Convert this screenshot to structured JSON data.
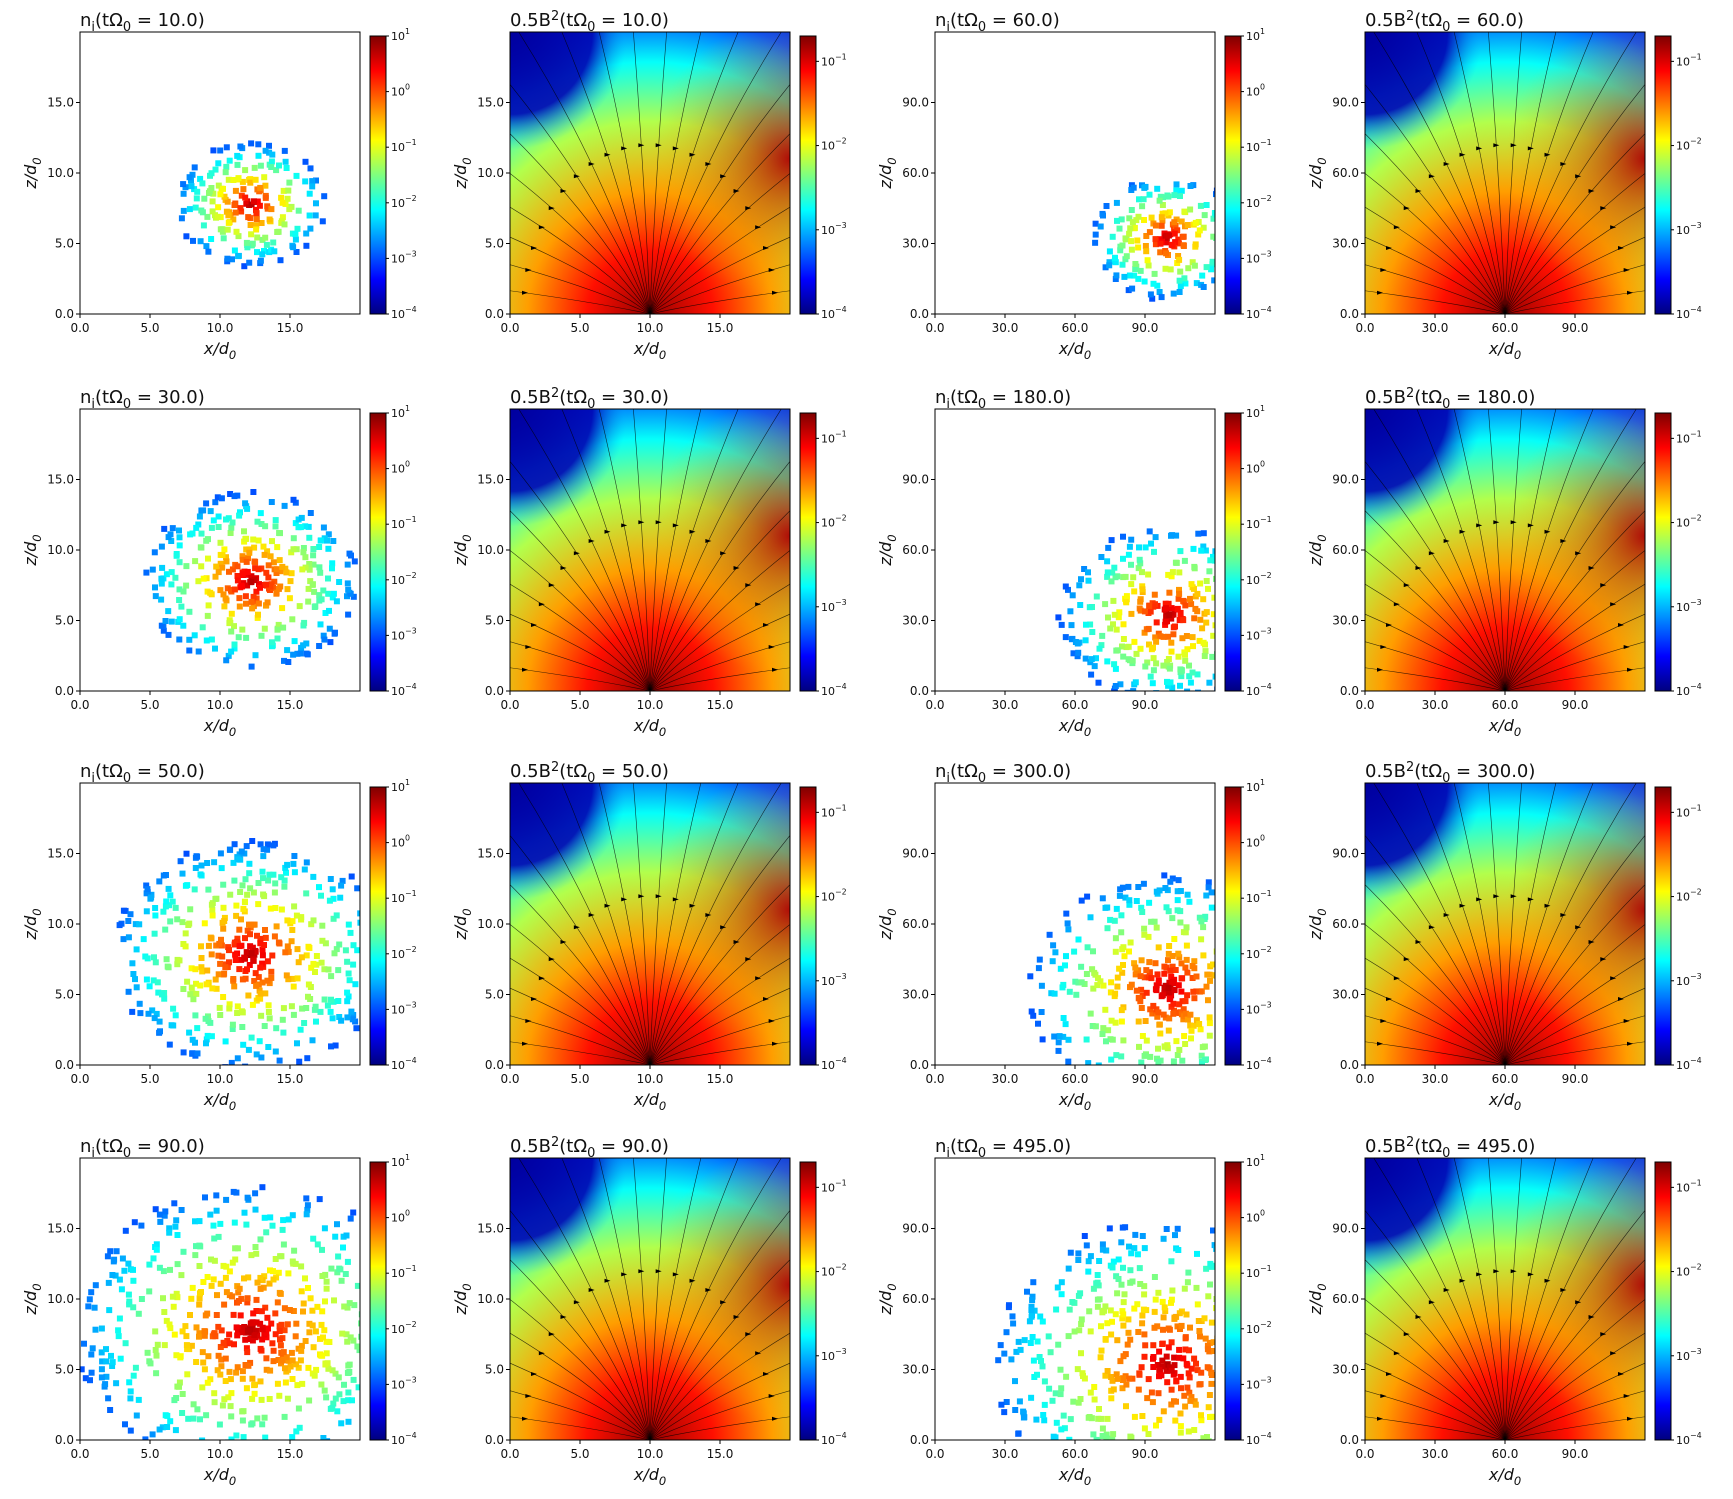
{
  "figure": {
    "colormap": [
      "#00007f",
      "#0000ff",
      "#007fff",
      "#00ffff",
      "#7fff7f",
      "#ffff00",
      "#ff7f00",
      "#ff0000",
      "#7f0000"
    ],
    "density_background": "#ffffff",
    "streamline_color": "#000000"
  },
  "chart_data": [
    {
      "type": "heatmap",
      "field": "density",
      "row": 1,
      "col": 1,
      "title": "n_i(tΩ_0 = 10.0)",
      "xlabel": "x/d_0",
      "ylabel": "z/d_0",
      "xlim": [
        0,
        20
      ],
      "ylim": [
        0,
        20
      ],
      "xticks": [
        "0.0",
        "5.0",
        "10.0",
        "15.0"
      ],
      "yticks": [
        "0.0",
        "5.0",
        "10.0",
        "15.0"
      ],
      "colorbar": {
        "scale": "log",
        "range": [
          0.0001,
          10.0
        ],
        "ticks": [
          "10^1",
          "10^0",
          "10^-1",
          "10^-2",
          "10^-3",
          "10^-4"
        ]
      }
    },
    {
      "type": "heatmap",
      "field": "magnetic_energy",
      "row": 1,
      "col": 2,
      "title": "0.5B^2(tΩ_0 = 10.0)",
      "xlabel": "x/d_0",
      "ylabel": "z/d_0",
      "xlim": [
        0,
        20
      ],
      "ylim": [
        0,
        20
      ],
      "xticks": [
        "0.0",
        "5.0",
        "10.0",
        "15.0"
      ],
      "yticks": [
        "0.0",
        "5.0",
        "10.0",
        "15.0"
      ],
      "streamlines": true,
      "colorbar": {
        "scale": "log",
        "range": [
          0.0001,
          0.2
        ],
        "ticks": [
          "10^-1",
          "10^-2",
          "10^-3",
          "10^-4"
        ]
      }
    },
    {
      "type": "heatmap",
      "field": "density",
      "row": 1,
      "col": 3,
      "title": "n_i(tΩ_0 = 60.0)",
      "xlabel": "x/d_0",
      "ylabel": "z/d_0",
      "xlim": [
        0,
        120
      ],
      "ylim": [
        0,
        120
      ],
      "xticks": [
        "0.0",
        "30.0",
        "60.0",
        "90.0"
      ],
      "yticks": [
        "0.0",
        "30.0",
        "60.0",
        "90.0"
      ],
      "colorbar": {
        "scale": "log",
        "range": [
          0.0001,
          10.0
        ],
        "ticks": [
          "10^1",
          "10^0",
          "10^-1",
          "10^-2",
          "10^-3",
          "10^-4"
        ]
      }
    },
    {
      "type": "heatmap",
      "field": "magnetic_energy",
      "row": 1,
      "col": 4,
      "title": "0.5B^2(tΩ_0 = 60.0)",
      "xlabel": "x/d_0",
      "ylabel": "z/d_0",
      "xlim": [
        0,
        120
      ],
      "ylim": [
        0,
        120
      ],
      "xticks": [
        "0.0",
        "30.0",
        "60.0",
        "90.0"
      ],
      "yticks": [
        "0.0",
        "30.0",
        "60.0",
        "90.0"
      ],
      "streamlines": true,
      "colorbar": {
        "scale": "log",
        "range": [
          0.0001,
          0.2
        ],
        "ticks": [
          "10^-1",
          "10^-2",
          "10^-3",
          "10^-4"
        ]
      }
    },
    {
      "type": "heatmap",
      "field": "density",
      "row": 2,
      "col": 1,
      "title": "n_i(tΩ_0 = 30.0)",
      "xlabel": "x/d_0",
      "ylabel": "z/d_0",
      "xlim": [
        0,
        20
      ],
      "ylim": [
        0,
        20
      ],
      "xticks": [
        "0.0",
        "5.0",
        "10.0",
        "15.0"
      ],
      "yticks": [
        "0.0",
        "5.0",
        "10.0",
        "15.0"
      ],
      "colorbar": {
        "scale": "log",
        "range": [
          0.0001,
          10.0
        ],
        "ticks": [
          "10^1",
          "10^0",
          "10^-1",
          "10^-2",
          "10^-3",
          "10^-4"
        ]
      }
    },
    {
      "type": "heatmap",
      "field": "magnetic_energy",
      "row": 2,
      "col": 2,
      "title": "0.5B^2(tΩ_0 = 30.0)",
      "xlabel": "x/d_0",
      "ylabel": "z/d_0",
      "xlim": [
        0,
        20
      ],
      "ylim": [
        0,
        20
      ],
      "xticks": [
        "0.0",
        "5.0",
        "10.0",
        "15.0"
      ],
      "yticks": [
        "0.0",
        "5.0",
        "10.0",
        "15.0"
      ],
      "streamlines": true,
      "colorbar": {
        "scale": "log",
        "range": [
          0.0001,
          0.2
        ],
        "ticks": [
          "10^-1",
          "10^-2",
          "10^-3",
          "10^-4"
        ]
      }
    },
    {
      "type": "heatmap",
      "field": "density",
      "row": 2,
      "col": 3,
      "title": "n_i(tΩ_0 = 180.0)",
      "xlabel": "x/d_0",
      "ylabel": "z/d_0",
      "xlim": [
        0,
        120
      ],
      "ylim": [
        0,
        120
      ],
      "xticks": [
        "0.0",
        "30.0",
        "60.0",
        "90.0"
      ],
      "yticks": [
        "0.0",
        "30.0",
        "60.0",
        "90.0"
      ],
      "colorbar": {
        "scale": "log",
        "range": [
          0.0001,
          10.0
        ],
        "ticks": [
          "10^1",
          "10^0",
          "10^-1",
          "10^-2",
          "10^-3",
          "10^-4"
        ]
      }
    },
    {
      "type": "heatmap",
      "field": "magnetic_energy",
      "row": 2,
      "col": 4,
      "title": "0.5B^2(tΩ_0 = 180.0)",
      "xlabel": "x/d_0",
      "ylabel": "z/d_0",
      "xlim": [
        0,
        120
      ],
      "ylim": [
        0,
        120
      ],
      "xticks": [
        "0.0",
        "30.0",
        "60.0",
        "90.0"
      ],
      "yticks": [
        "0.0",
        "30.0",
        "60.0",
        "90.0"
      ],
      "streamlines": true,
      "colorbar": {
        "scale": "log",
        "range": [
          0.0001,
          0.2
        ],
        "ticks": [
          "10^-1",
          "10^-2",
          "10^-3",
          "10^-4"
        ]
      }
    },
    {
      "type": "heatmap",
      "field": "density",
      "row": 3,
      "col": 1,
      "title": "n_i(tΩ_0 = 50.0)",
      "xlabel": "x/d_0",
      "ylabel": "z/d_0",
      "xlim": [
        0,
        20
      ],
      "ylim": [
        0,
        20
      ],
      "xticks": [
        "0.0",
        "5.0",
        "10.0",
        "15.0"
      ],
      "yticks": [
        "0.0",
        "5.0",
        "10.0",
        "15.0"
      ],
      "colorbar": {
        "scale": "log",
        "range": [
          0.0001,
          10.0
        ],
        "ticks": [
          "10^1",
          "10^0",
          "10^-1",
          "10^-2",
          "10^-3",
          "10^-4"
        ]
      }
    },
    {
      "type": "heatmap",
      "field": "magnetic_energy",
      "row": 3,
      "col": 2,
      "title": "0.5B^2(tΩ_0 = 50.0)",
      "xlabel": "x/d_0",
      "ylabel": "z/d_0",
      "xlim": [
        0,
        20
      ],
      "ylim": [
        0,
        20
      ],
      "xticks": [
        "0.0",
        "5.0",
        "10.0",
        "15.0"
      ],
      "yticks": [
        "0.0",
        "5.0",
        "10.0",
        "15.0"
      ],
      "streamlines": true,
      "colorbar": {
        "scale": "log",
        "range": [
          0.0001,
          0.2
        ],
        "ticks": [
          "10^-1",
          "10^-2",
          "10^-3",
          "10^-4"
        ]
      }
    },
    {
      "type": "heatmap",
      "field": "density",
      "row": 3,
      "col": 3,
      "title": "n_i(tΩ_0 = 300.0)",
      "xlabel": "x/d_0",
      "ylabel": "z/d_0",
      "xlim": [
        0,
        120
      ],
      "ylim": [
        0,
        120
      ],
      "xticks": [
        "0.0",
        "30.0",
        "60.0",
        "90.0"
      ],
      "yticks": [
        "0.0",
        "30.0",
        "60.0",
        "90.0"
      ],
      "colorbar": {
        "scale": "log",
        "range": [
          0.0001,
          10.0
        ],
        "ticks": [
          "10^1",
          "10^0",
          "10^-1",
          "10^-2",
          "10^-3",
          "10^-4"
        ]
      }
    },
    {
      "type": "heatmap",
      "field": "magnetic_energy",
      "row": 3,
      "col": 4,
      "title": "0.5B^2(tΩ_0 = 300.0)",
      "xlabel": "x/d_0",
      "ylabel": "z/d_0",
      "xlim": [
        0,
        120
      ],
      "ylim": [
        0,
        120
      ],
      "xticks": [
        "0.0",
        "30.0",
        "60.0",
        "90.0"
      ],
      "yticks": [
        "0.0",
        "30.0",
        "60.0",
        "90.0"
      ],
      "streamlines": true,
      "colorbar": {
        "scale": "log",
        "range": [
          0.0001,
          0.2
        ],
        "ticks": [
          "10^-1",
          "10^-2",
          "10^-3",
          "10^-4"
        ]
      }
    },
    {
      "type": "heatmap",
      "field": "density",
      "row": 4,
      "col": 1,
      "title": "n_i(tΩ_0 = 90.0)",
      "xlabel": "x/d_0",
      "ylabel": "z/d_0",
      "xlim": [
        0,
        20
      ],
      "ylim": [
        0,
        20
      ],
      "xticks": [
        "0.0",
        "5.0",
        "10.0",
        "15.0"
      ],
      "yticks": [
        "0.0",
        "5.0",
        "10.0",
        "15.0"
      ],
      "colorbar": {
        "scale": "log",
        "range": [
          0.0001,
          10.0
        ],
        "ticks": [
          "10^1",
          "10^0",
          "10^-1",
          "10^-2",
          "10^-3",
          "10^-4"
        ]
      }
    },
    {
      "type": "heatmap",
      "field": "magnetic_energy",
      "row": 4,
      "col": 2,
      "title": "0.5B^2(tΩ_0 = 90.0)",
      "xlabel": "x/d_0",
      "ylabel": "z/d_0",
      "xlim": [
        0,
        20
      ],
      "ylim": [
        0,
        20
      ],
      "xticks": [
        "0.0",
        "5.0",
        "10.0",
        "15.0"
      ],
      "yticks": [
        "0.0",
        "5.0",
        "10.0",
        "15.0"
      ],
      "streamlines": true,
      "colorbar": {
        "scale": "log",
        "range": [
          0.0001,
          0.2
        ],
        "ticks": [
          "10^-1",
          "10^-2",
          "10^-3",
          "10^-4"
        ]
      }
    },
    {
      "type": "heatmap",
      "field": "density",
      "row": 4,
      "col": 3,
      "title": "n_i(tΩ_0 = 495.0)",
      "xlabel": "x/d_0",
      "ylabel": "z/d_0",
      "xlim": [
        0,
        120
      ],
      "ylim": [
        0,
        120
      ],
      "xticks": [
        "0.0",
        "30.0",
        "60.0",
        "90.0"
      ],
      "yticks": [
        "0.0",
        "30.0",
        "60.0",
        "90.0"
      ],
      "colorbar": {
        "scale": "log",
        "range": [
          0.0001,
          10.0
        ],
        "ticks": [
          "10^1",
          "10^0",
          "10^-1",
          "10^-2",
          "10^-3",
          "10^-4"
        ]
      }
    },
    {
      "type": "heatmap",
      "field": "magnetic_energy",
      "row": 4,
      "col": 4,
      "title": "0.5B^2(tΩ_0 = 495.0)",
      "xlabel": "x/d_0",
      "ylabel": "z/d_0",
      "xlim": [
        0,
        120
      ],
      "ylim": [
        0,
        120
      ],
      "xticks": [
        "0.0",
        "30.0",
        "60.0",
        "90.0"
      ],
      "yticks": [
        "0.0",
        "30.0",
        "60.0",
        "90.0"
      ],
      "streamlines": true,
      "colorbar": {
        "scale": "log",
        "range": [
          0.0001,
          0.2
        ],
        "ticks": [
          "10^-1",
          "10^-2",
          "10^-3",
          "10^-4"
        ]
      }
    }
  ]
}
